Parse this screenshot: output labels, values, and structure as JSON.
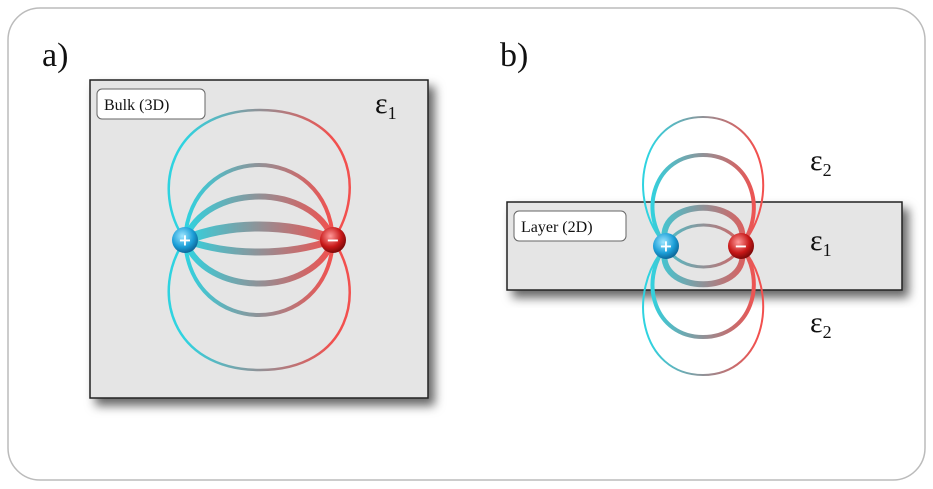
{
  "panels": [
    {
      "label": "a)",
      "box_label": "Bulk (3D)",
      "epsilons": [
        {
          "symbol": "ε",
          "subscript": "1"
        }
      ],
      "charges": {
        "positive": "+",
        "negative": "−"
      }
    },
    {
      "label": "b)",
      "box_label": "Layer (2D)",
      "epsilons": [
        {
          "symbol": "ε",
          "subscript": "2"
        },
        {
          "symbol": "ε",
          "subscript": "1"
        },
        {
          "symbol": "ε",
          "subscript": "2"
        }
      ],
      "charges": {
        "positive": "+",
        "negative": "−"
      }
    }
  ]
}
